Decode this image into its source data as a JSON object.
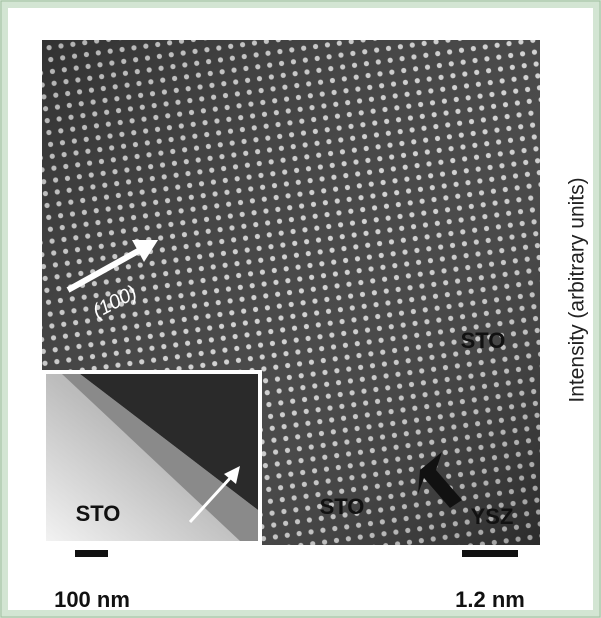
{
  "figure": {
    "axis_label": "Intensity (arbitrary units)",
    "direction_label": "(100)",
    "labels": [
      "STO",
      "STO",
      "YSZ"
    ],
    "inset_label": "STO",
    "inset_scale": "100 nm",
    "main_scale": "1.2 nm"
  }
}
